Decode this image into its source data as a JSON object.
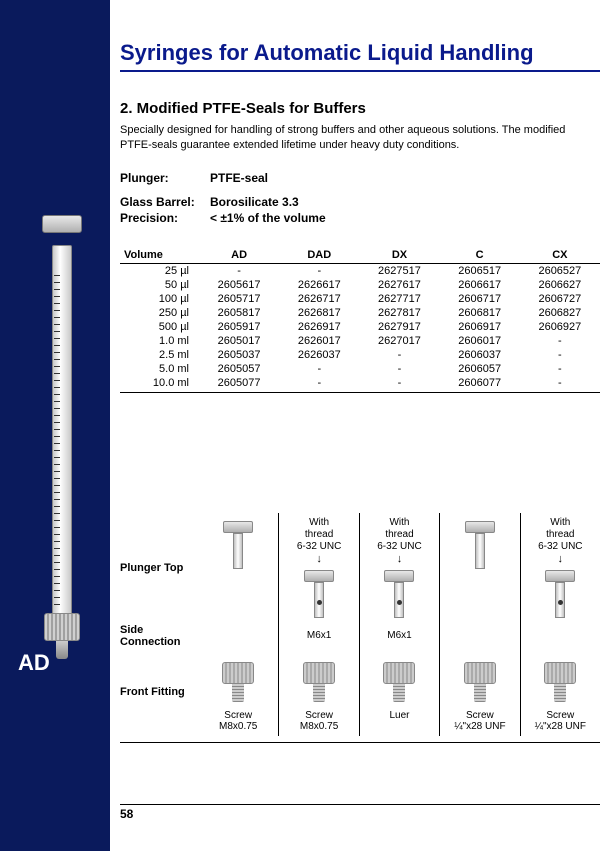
{
  "sidebar": {
    "label": "AD"
  },
  "title": "Syringes for Automatic Liquid Handling",
  "subtitle": "2. Modified PTFE-Seals for Buffers",
  "description": "Specially designed for handling of strong buffers and other aqueous solutions. The modified PTFE-seals guarantee extended lifetime under heavy duty conditions.",
  "specs": [
    {
      "label": "Plunger:",
      "value": "PTFE-seal"
    },
    {
      "label": "Glass Barrel:",
      "value": "Borosilicate 3.3"
    },
    {
      "label": "Precision:",
      "value": "< ±1% of the volume"
    }
  ],
  "table": {
    "columns": [
      "Volume",
      "AD",
      "DAD",
      "DX",
      "C",
      "CX"
    ],
    "rows": [
      [
        "25 µl",
        "-",
        "-",
        "2627517",
        "2606517",
        "2606527"
      ],
      [
        "50 µl",
        "2605617",
        "2626617",
        "2627617",
        "2606617",
        "2606627"
      ],
      [
        "100 µl",
        "2605717",
        "2626717",
        "2627717",
        "2606717",
        "2606727"
      ],
      [
        "250 µl",
        "2605817",
        "2626817",
        "2627817",
        "2606817",
        "2606827"
      ],
      [
        "500 µl",
        "2605917",
        "2626917",
        "2627917",
        "2606917",
        "2606927"
      ],
      [
        "1.0 ml",
        "2605017",
        "2626017",
        "2627017",
        "2606017",
        "-"
      ],
      [
        "2.5 ml",
        "2605037",
        "2626037",
        "-",
        "2606037",
        "-"
      ],
      [
        "5.0 ml",
        "2605057",
        "-",
        "-",
        "2606057",
        "-"
      ],
      [
        "10.0 ml",
        "2605077",
        "-",
        "-",
        "2606077",
        "-"
      ]
    ]
  },
  "plunger_section": {
    "row_headers": [
      "Plunger Top",
      "Side Connection",
      "Front Fitting"
    ],
    "cols": [
      {
        "thread": "",
        "side_conn": "",
        "fitting": "Screw M8x0.75"
      },
      {
        "thread": "With thread 6-32 UNC",
        "side_conn": "M6x1",
        "fitting": "Screw M8x0.75"
      },
      {
        "thread": "With thread 6-32 UNC",
        "side_conn": "M6x1",
        "fitting": "Luer"
      },
      {
        "thread": "",
        "side_conn": "",
        "fitting": "Screw ¼\"x28 UNF"
      },
      {
        "thread": "With thread 6-32 UNC",
        "side_conn": "",
        "fitting": "Screw ¼\"x28 UNF"
      }
    ]
  },
  "page_number": "58",
  "colors": {
    "sidebar": "#0a1a5c",
    "title": "#0a1a8c",
    "text": "#000000",
    "bg": "#ffffff"
  }
}
